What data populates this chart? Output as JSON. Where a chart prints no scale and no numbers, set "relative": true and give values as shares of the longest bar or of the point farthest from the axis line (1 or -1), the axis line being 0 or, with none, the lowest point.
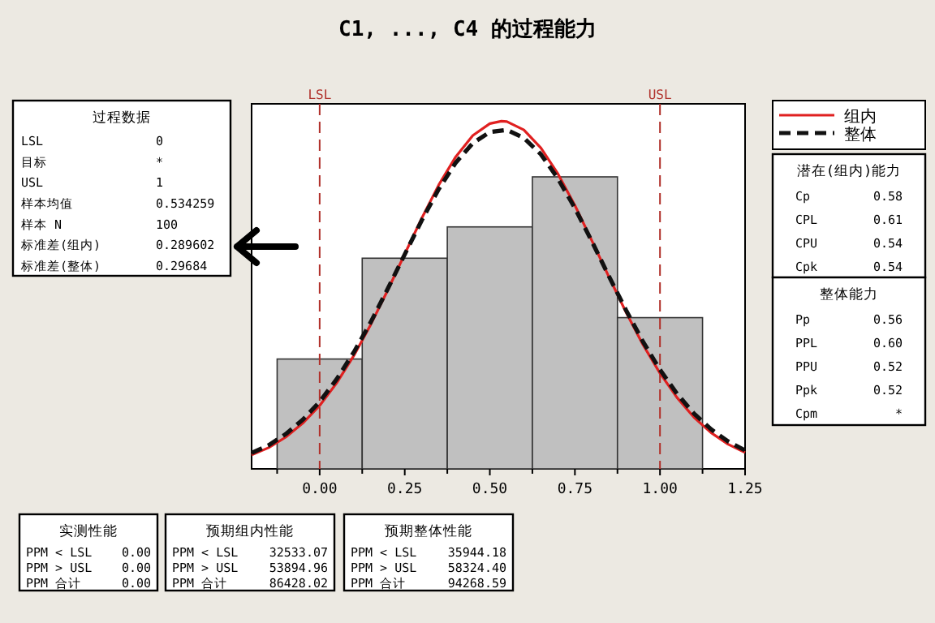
{
  "chart_data": [
    {
      "type": "histogram",
      "title": "C1, ..., C4 的过程能力",
      "relative": true,
      "bins": [
        -0.125,
        0.125,
        0.375,
        0.625,
        0.875,
        1.125
      ],
      "values": [
        0.316,
        0.606,
        0.696,
        0.84,
        0.435
      ],
      "color": "#c0c0c0",
      "xlim": [
        -0.2,
        1.25
      ],
      "xticks": [
        {
          "value": 0,
          "label": "0.00"
        },
        {
          "value": 0.25,
          "label": "0.25"
        },
        {
          "value": 0.5,
          "label": "0.50"
        },
        {
          "value": 0.75,
          "label": "0.75"
        },
        {
          "value": 1,
          "label": "1.00"
        },
        {
          "value": 1.25,
          "label": "1.25"
        }
      ],
      "legend": "right",
      "ref_lines": [
        {
          "axis": "x",
          "value": 0,
          "label": "LSL",
          "color": "#b0302a",
          "line_style": "dashed"
        },
        {
          "axis": "x",
          "value": 1,
          "label": "USL",
          "color": "#b0302a",
          "line_style": "dashed"
        }
      ],
      "series": [
        {
          "name": "组内",
          "type": "line",
          "color": "#e02020",
          "line_style": "solid",
          "x": [
            -0.2,
            -0.15,
            -0.1,
            -0.05,
            0,
            0.05,
            0.1,
            0.15,
            0.2,
            0.25,
            0.3,
            0.35,
            0.4,
            0.45,
            0.5,
            0.534,
            0.55,
            0.6,
            0.65,
            0.7,
            0.75,
            0.8,
            0.85,
            0.9,
            0.95,
            1,
            1.05,
            1.1,
            1.15,
            1.2,
            1.25
          ],
          "values": [
            0.04,
            0.061,
            0.091,
            0.131,
            0.182,
            0.247,
            0.325,
            0.415,
            0.514,
            0.618,
            0.721,
            0.817,
            0.898,
            0.959,
            0.993,
            1,
            0.999,
            0.975,
            0.923,
            0.849,
            0.758,
            0.656,
            0.552,
            0.451,
            0.357,
            0.275,
            0.205,
            0.148,
            0.104,
            0.071,
            0.047
          ]
        },
        {
          "name": "整体",
          "type": "line",
          "color": "#111111",
          "line_style": "dashed",
          "x": [
            -0.2,
            -0.15,
            -0.1,
            -0.05,
            0,
            0.05,
            0.1,
            0.15,
            0.2,
            0.25,
            0.3,
            0.35,
            0.4,
            0.45,
            0.5,
            0.55,
            0.6,
            0.65,
            0.7,
            0.75,
            0.8,
            0.85,
            0.9,
            0.95,
            1,
            1.05,
            1.1,
            1.15,
            1.2,
            1.25
          ],
          "values": [
            0.046,
            0.068,
            0.1,
            0.141,
            0.193,
            0.258,
            0.335,
            0.422,
            0.518,
            0.617,
            0.715,
            0.805,
            0.881,
            0.937,
            0.969,
            0.975,
            0.952,
            0.905,
            0.835,
            0.75,
            0.654,
            0.554,
            0.457,
            0.366,
            0.285,
            0.216,
            0.159,
            0.114,
            0.079,
            0.053
          ]
        }
      ]
    },
    {
      "type": "other",
      "title": "过程数据",
      "annotations": [
        "LSL",
        "0",
        "目标",
        "*",
        "USL",
        "1",
        "样本均值",
        "0.534259",
        "样本 N",
        "100",
        "标准差(组内)",
        "0.289602",
        "标准差(整体)",
        "0.29684"
      ]
    },
    {
      "type": "other",
      "title": "潜在(组内)能力",
      "annotations": [
        "Cp",
        "0.58",
        "CPL",
        "0.61",
        "CPU",
        "0.54",
        "Cpk",
        "0.54"
      ]
    },
    {
      "type": "other",
      "title": "整体能力",
      "annotations": [
        "Pp",
        "0.56",
        "PPL",
        "0.60",
        "PPU",
        "0.52",
        "Ppk",
        "0.52",
        "Cpm",
        "*"
      ]
    },
    {
      "type": "other",
      "title": "实测性能",
      "annotations": [
        "PPM < LSL",
        "0.00",
        "PPM > USL",
        "0.00",
        "PPM 合计",
        "0.00"
      ]
    },
    {
      "type": "other",
      "title": "预期组内性能",
      "annotations": [
        "PPM < LSL",
        "32533.07",
        "PPM > USL",
        "53894.96",
        "PPM 合计",
        "86428.02"
      ]
    },
    {
      "type": "other",
      "title": "预期整体性能",
      "annotations": [
        "PPM < LSL",
        "35944.18",
        "PPM > USL",
        "58324.40",
        "PPM 合计",
        "94268.59"
      ]
    }
  ]
}
